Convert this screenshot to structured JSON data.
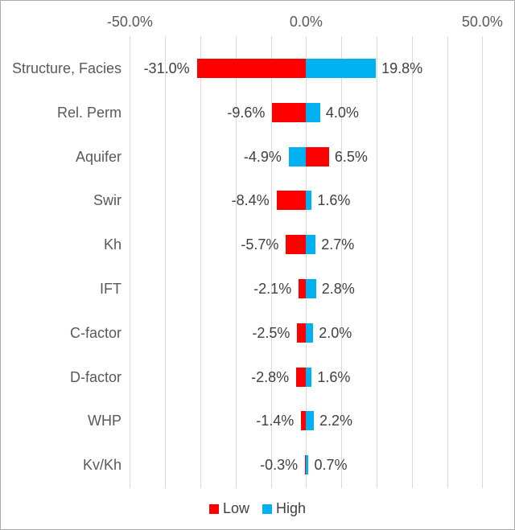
{
  "chart_data": {
    "type": "bar",
    "variant": "tornado",
    "orientation": "horizontal",
    "categories": [
      "Structure, Facies",
      "Rel. Perm",
      "Aquifer",
      "Swir",
      "Kh",
      "IFT",
      "C-factor",
      "D-factor",
      "WHP",
      "Kv/Kh"
    ],
    "series": [
      {
        "name": "Low",
        "color": "#FF0000",
        "values": [
          -31.0,
          -9.6,
          6.5,
          -8.4,
          -5.7,
          -2.1,
          -2.5,
          -2.8,
          -1.4,
          -0.3
        ],
        "labels": [
          "-31.0%",
          "-9.6%",
          "6.5%",
          "-8.4%",
          "-5.7%",
          "-2.1%",
          "-2.5%",
          "-2.8%",
          "-1.4%",
          "-0.3%"
        ]
      },
      {
        "name": "High",
        "color": "#00B0F0",
        "values": [
          19.8,
          4.0,
          -4.9,
          1.6,
          2.7,
          2.8,
          2.0,
          1.6,
          2.2,
          0.7
        ],
        "labels": [
          "19.8%",
          "4.0%",
          "-4.9%",
          "1.6%",
          "2.7%",
          "2.8%",
          "2.0%",
          "1.6%",
          "2.2%",
          "0.7%"
        ]
      }
    ],
    "x_axis": {
      "position": "top",
      "min": -50,
      "max": 50,
      "gridline_step": 10,
      "grid": true,
      "tick_values": [
        -50,
        0,
        50
      ],
      "tick_labels": [
        "-50.0%",
        "0.0%",
        "50.0%"
      ]
    },
    "legend": {
      "position": "bottom",
      "entries": [
        {
          "label": "Low",
          "color": "#FF0000"
        },
        {
          "label": "High",
          "color": "#00B0F0"
        }
      ]
    },
    "colors": {
      "background": "#FFFFFF",
      "border": "#ABABAB",
      "gridline": "#D9D9D9",
      "axis_text": "#595959",
      "label_text": "#404040"
    }
  }
}
